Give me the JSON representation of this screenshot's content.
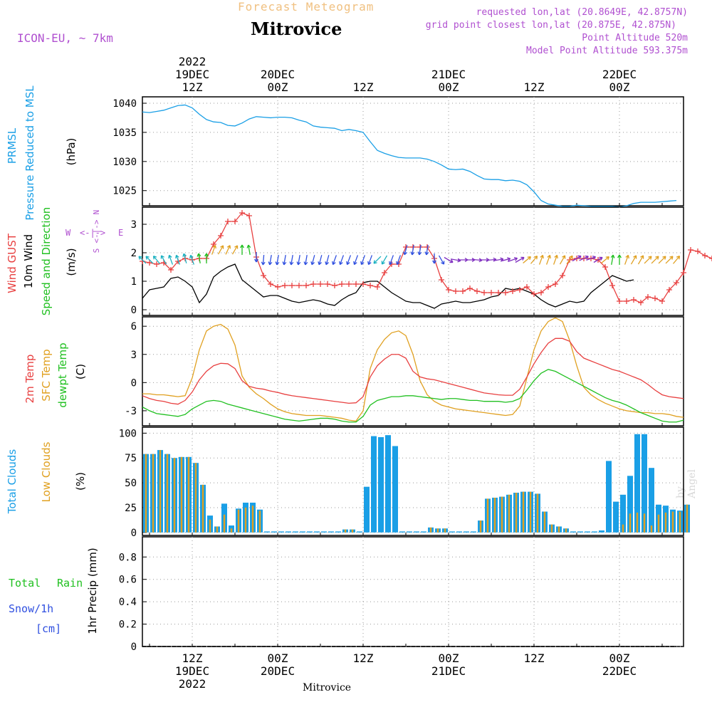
{
  "header": {
    "title_top": "Forecast Meteogram",
    "location": "Mitrovice",
    "model": "ICON-EU, ~ 7km",
    "requested": "requested lon,lat (20.8649E, 42.8757N)",
    "grid": "grid point closest lon,lat (20.875E, 42.875N)",
    "point_alt": "Point Altitude 520m",
    "model_alt": "Model Point Altitude 593.375m",
    "footer": "Mitrovice",
    "watermark": "by Angel"
  },
  "colors": {
    "pressure": "#1a9fe6",
    "gust": "#e84040",
    "wind": "#000000",
    "temp2m": "#e84040",
    "sfc": "#e0a020",
    "dewpt": "#20c020",
    "total_clouds": "#1a9fe6",
    "low_clouds": "#e0a020",
    "title_orange": "#f0c080",
    "purple": "#b050d0",
    "green_label": "#20c020",
    "blue_label": "#3050e0"
  },
  "time_axis": {
    "top": [
      {
        "t": 7,
        "lines": [
          "2022",
          "19DEC",
          "12Z"
        ]
      },
      {
        "t": 19,
        "lines": [
          "20DEC",
          "00Z"
        ]
      },
      {
        "t": 31,
        "lines": [
          "12Z"
        ]
      },
      {
        "t": 43,
        "lines": [
          "21DEC",
          "00Z"
        ]
      },
      {
        "t": 55,
        "lines": [
          "12Z"
        ]
      },
      {
        "t": 67,
        "lines": [
          "22DEC",
          "00Z"
        ]
      }
    ],
    "bottom": [
      {
        "t": 7,
        "lines": [
          "12Z",
          "19DEC",
          "2022"
        ]
      },
      {
        "t": 19,
        "lines": [
          "00Z",
          "20DEC"
        ]
      },
      {
        "t": 31,
        "lines": [
          "12Z"
        ]
      },
      {
        "t": 43,
        "lines": [
          "00Z",
          "21DEC"
        ]
      },
      {
        "t": 55,
        "lines": [
          "12Z"
        ]
      },
      {
        "t": 67,
        "lines": [
          "00Z",
          "22DEC"
        ]
      }
    ]
  },
  "panels": {
    "pressure": {
      "labels": [
        {
          "text": "PRMSL",
          "color": "#1a9fe6"
        },
        {
          "text": "Pressure Reduced to MSL",
          "color": "#1a9fe6"
        },
        {
          "text": "(hPa)",
          "color": "#000000"
        }
      ],
      "ticks": [
        "1040",
        "1035",
        "1030",
        "1025"
      ]
    },
    "wind": {
      "labels": [
        {
          "text": "Wind GUST",
          "color": "#e84040"
        },
        {
          "text": "10m Wind",
          "color": "#000000"
        },
        {
          "text": "Speed and Direction",
          "color": "#20c020"
        },
        {
          "text": "(m/s)",
          "color": "#000000"
        }
      ],
      "compass": {
        "n": "N",
        "s": "S",
        "e": "E",
        "w": "W"
      },
      "ticks": [
        "3",
        "2",
        "1",
        "0"
      ]
    },
    "temp": {
      "labels": [
        {
          "text": "2m Temp",
          "color": "#e84040"
        },
        {
          "text": "SFC Temp",
          "color": "#e0a020"
        },
        {
          "text": "dewpt Temp",
          "color": "#20c020"
        },
        {
          "text": "(C)",
          "color": "#000000"
        }
      ],
      "ticks": [
        "6",
        "3",
        "0",
        "-3"
      ]
    },
    "clouds": {
      "labels": [
        {
          "text": "Total Clouds",
          "color": "#1a9fe6"
        },
        {
          "text": "Low Clouds",
          "color": "#e0a020"
        },
        {
          "text": "(%)",
          "color": "#000000"
        }
      ],
      "ticks": [
        "100",
        "75",
        "50",
        "25",
        "0"
      ]
    },
    "precip": {
      "labels": [
        {
          "text": "1hr Precip (mm)",
          "color": "#000000"
        }
      ],
      "side": [
        {
          "text": "Total",
          "color": "#20c020"
        },
        {
          "text": "Rain",
          "color": "#20c020"
        },
        {
          "text": "Snow/1h",
          "color": "#3050e0"
        },
        {
          "text": "[cm]",
          "color": "#3050e0"
        }
      ],
      "ticks": [
        "0.8",
        "0.6",
        "0.4",
        "0.2",
        "0"
      ]
    }
  },
  "chart_data": {
    "type": "line",
    "x_unit": "hour steps from 19DEC 05Z (step = 1 hour)",
    "x_range": [
      0,
      76
    ],
    "pressure": {
      "name": "PRMSL",
      "ylim": [
        1022.4,
        1041.1
      ],
      "values": [
        1038.5,
        1038.4,
        1038.6,
        1038.8,
        1039.2,
        1039.6,
        1039.7,
        1039.2,
        1038.1,
        1037.2,
        1036.8,
        1036.7,
        1036.2,
        1036.1,
        1036.6,
        1037.3,
        1037.7,
        1037.6,
        1037.5,
        1037.6,
        1037.6,
        1037.5,
        1037.1,
        1036.8,
        1036.1,
        1035.9,
        1035.8,
        1035.7,
        1035.3,
        1035.5,
        1035.3,
        1035.0,
        1033.4,
        1031.9,
        1031.4,
        1031.0,
        1030.7,
        1030.6,
        1030.6,
        1030.6,
        1030.4,
        1030.0,
        1029.4,
        1028.7,
        1028.6,
        1028.7,
        1028.3,
        1027.6,
        1027.0,
        1026.9,
        1026.9,
        1026.7,
        1026.8,
        1026.6,
        1026.0,
        1024.8,
        1023.3,
        1022.7,
        1022.5,
        1022.3,
        1022.3,
        1022.5,
        1022.4,
        1022.3,
        1022.3,
        1022.3,
        1022.3,
        1022.2,
        1022.4,
        1022.8,
        1023.0,
        1023.0,
        1023.0,
        1023.1,
        1023.2,
        1023.3
      ]
    },
    "wind_gust": {
      "name": "Wind GUST",
      "ylim": [
        -0.2,
        3.6
      ],
      "values": [
        1.7,
        1.65,
        1.6,
        1.65,
        1.4,
        1.7,
        1.8,
        1.75,
        1.8,
        1.8,
        2.3,
        2.6,
        3.1,
        3.1,
        3.4,
        3.3,
        1.85,
        1.2,
        0.9,
        0.8,
        0.85,
        0.85,
        0.85,
        0.85,
        0.9,
        0.9,
        0.9,
        0.85,
        0.9,
        0.9,
        0.9,
        0.9,
        0.85,
        0.8,
        1.3,
        1.6,
        1.6,
        2.2,
        2.2,
        2.2,
        2.2,
        1.8,
        1.05,
        0.7,
        0.65,
        0.65,
        0.75,
        0.65,
        0.6,
        0.6,
        0.6,
        0.6,
        0.65,
        0.7,
        0.8,
        0.55,
        0.6,
        0.8,
        0.9,
        1.2,
        1.75,
        1.8,
        1.8,
        1.8,
        1.75,
        1.5,
        0.85,
        0.3,
        0.3,
        0.35,
        0.25,
        0.45,
        0.4,
        0.3,
        0.7,
        0.95,
        1.3,
        2.1,
        2.05,
        1.9,
        1.8
      ]
    },
    "wind_10m": {
      "name": "10m Wind",
      "ylim": [
        -0.2,
        3.6
      ],
      "values": [
        0.4,
        0.7,
        0.75,
        0.8,
        1.1,
        1.15,
        1.0,
        0.8,
        0.25,
        0.55,
        1.15,
        1.35,
        1.5,
        1.6,
        1.05,
        0.85,
        0.65,
        0.45,
        0.5,
        0.5,
        0.4,
        0.3,
        0.25,
        0.3,
        0.35,
        0.3,
        0.2,
        0.15,
        0.35,
        0.5,
        0.6,
        0.95,
        1.0,
        1.0,
        0.8,
        0.6,
        0.45,
        0.3,
        0.25,
        0.25,
        0.15,
        0.05,
        0.2,
        0.25,
        0.3,
        0.25,
        0.25,
        0.3,
        0.35,
        0.45,
        0.5,
        0.75,
        0.7,
        0.75,
        0.65,
        0.55,
        0.35,
        0.2,
        0.1,
        0.2,
        0.3,
        0.25,
        0.3,
        0.6,
        0.8,
        1.0,
        1.2,
        1.1,
        1.0,
        1.05
      ]
    },
    "temp_2m": {
      "name": "2m Temp",
      "ylim": [
        -4.6,
        7.0
      ],
      "values": [
        -1.4,
        -1.7,
        -1.9,
        -2.0,
        -2.2,
        -2.3,
        -1.9,
        -1.0,
        0.3,
        1.2,
        1.8,
        2.05,
        2.0,
        1.5,
        0.2,
        -0.4,
        -0.6,
        -0.7,
        -0.9,
        -1.05,
        -1.25,
        -1.4,
        -1.5,
        -1.6,
        -1.7,
        -1.8,
        -1.9,
        -2.0,
        -2.1,
        -2.2,
        -2.15,
        -1.5,
        0.6,
        1.8,
        2.5,
        3.0,
        3.0,
        2.6,
        1.2,
        0.6,
        0.4,
        0.3,
        0.1,
        -0.1,
        -0.3,
        -0.5,
        -0.7,
        -0.9,
        -1.1,
        -1.2,
        -1.3,
        -1.35,
        -1.35,
        -0.7,
        0.6,
        2.0,
        3.2,
        4.2,
        4.7,
        4.7,
        4.4,
        3.3,
        2.6,
        2.3,
        2.0,
        1.7,
        1.4,
        1.2,
        0.9,
        0.6,
        0.3,
        -0.2,
        -0.8,
        -1.3,
        -1.5,
        -1.6,
        -1.7
      ]
    },
    "temp_sfc": {
      "name": "SFC Temp",
      "ylim": [
        -4.6,
        7.0
      ],
      "values": [
        -1.2,
        -1.2,
        -1.3,
        -1.3,
        -1.4,
        -1.5,
        -1.4,
        0.5,
        3.5,
        5.5,
        6.0,
        6.2,
        5.7,
        4.0,
        0.7,
        -0.5,
        -1.2,
        -1.7,
        -2.3,
        -2.8,
        -3.1,
        -3.3,
        -3.4,
        -3.5,
        -3.5,
        -3.5,
        -3.6,
        -3.7,
        -3.8,
        -4.0,
        -4.1,
        -3.0,
        1.5,
        3.5,
        4.6,
        5.3,
        5.5,
        5.0,
        3.0,
        0.2,
        -1.3,
        -2.0,
        -2.4,
        -2.6,
        -2.8,
        -2.9,
        -3.0,
        -3.1,
        -3.2,
        -3.3,
        -3.4,
        -3.5,
        -3.4,
        -2.5,
        0.5,
        3.5,
        5.5,
        6.5,
        6.9,
        6.5,
        4.5,
        1.8,
        -0.5,
        -1.3,
        -1.8,
        -2.2,
        -2.5,
        -2.8,
        -3.0,
        -3.1,
        -3.2,
        -3.2,
        -3.3,
        -3.3,
        -3.4,
        -3.6,
        -3.7
      ]
    },
    "dewpt": {
      "name": "dewpt Temp",
      "ylim": [
        -4.6,
        7.0
      ],
      "values": [
        -2.6,
        -3.0,
        -3.3,
        -3.4,
        -3.5,
        -3.6,
        -3.4,
        -2.8,
        -2.4,
        -2.0,
        -1.9,
        -2.0,
        -2.3,
        -2.5,
        -2.7,
        -2.9,
        -3.1,
        -3.3,
        -3.5,
        -3.7,
        -3.9,
        -4.0,
        -4.1,
        -4.0,
        -3.9,
        -3.8,
        -3.8,
        -3.9,
        -4.1,
        -4.2,
        -4.2,
        -3.6,
        -2.4,
        -1.9,
        -1.7,
        -1.5,
        -1.5,
        -1.4,
        -1.4,
        -1.5,
        -1.6,
        -1.7,
        -1.8,
        -1.7,
        -1.7,
        -1.8,
        -1.9,
        -1.9,
        -2.0,
        -2.0,
        -2.0,
        -2.1,
        -2.0,
        -1.7,
        -0.8,
        0.2,
        1.0,
        1.4,
        1.2,
        0.8,
        0.4,
        0.0,
        -0.4,
        -0.8,
        -1.2,
        -1.6,
        -1.9,
        -2.1,
        -2.4,
        -2.8,
        -3.2,
        -3.5,
        -3.8,
        -4.1,
        -4.2,
        -4.2,
        -4.0
      ]
    },
    "total_clouds": {
      "name": "Total Clouds",
      "ylim": [
        -3,
        106
      ],
      "values": [
        79,
        79,
        83,
        79,
        75,
        76,
        76,
        70,
        48,
        17,
        6,
        29,
        7,
        24,
        30,
        30,
        23,
        1,
        1,
        1,
        1,
        1,
        1,
        1,
        1,
        1,
        1,
        1,
        3,
        3,
        1,
        46,
        97,
        96,
        98,
        87,
        1,
        1,
        1,
        1,
        5,
        4,
        4,
        1,
        1,
        1,
        1,
        12,
        34,
        35,
        36,
        38,
        40,
        41,
        41,
        39,
        21,
        8,
        6,
        4,
        1,
        1,
        1,
        1,
        2,
        72,
        31,
        38,
        57,
        99,
        99,
        65,
        28,
        27,
        23,
        22,
        28
      ]
    },
    "low_clouds": {
      "name": "Low Clouds",
      "ylim": [
        -3,
        106
      ],
      "values": [
        79,
        79,
        83,
        79,
        75,
        76,
        76,
        70,
        48,
        13,
        6,
        18,
        4,
        23,
        25,
        27,
        22,
        1,
        1,
        1,
        1,
        1,
        1,
        1,
        1,
        1,
        1,
        1,
        3,
        3,
        1,
        1,
        1,
        1,
        1,
        1,
        1,
        1,
        1,
        1,
        5,
        4,
        4,
        1,
        1,
        1,
        1,
        12,
        34,
        35,
        36,
        38,
        40,
        41,
        41,
        39,
        21,
        8,
        6,
        4,
        1,
        1,
        1,
        1,
        1,
        1,
        1,
        8,
        19,
        20,
        19,
        7,
        18,
        20,
        21,
        21,
        28
      ]
    },
    "precip": {
      "name": "1hr Precip",
      "ylim": [
        0,
        0.98
      ],
      "values": [
        0,
        0,
        0,
        0,
        0,
        0,
        0,
        0,
        0,
        0,
        0,
        0,
        0,
        0,
        0,
        0,
        0,
        0,
        0,
        0,
        0,
        0,
        0,
        0,
        0,
        0,
        0,
        0,
        0,
        0,
        0,
        0,
        0,
        0,
        0,
        0,
        0,
        0,
        0,
        0,
        0,
        0,
        0,
        0,
        0,
        0,
        0,
        0,
        0,
        0,
        0,
        0,
        0,
        0,
        0,
        0,
        0,
        0,
        0,
        0,
        0,
        0,
        0,
        0,
        0,
        0,
        0,
        0,
        0,
        0,
        0,
        0,
        0,
        0,
        0,
        0
      ]
    },
    "wind_dir_deg": [
      135,
      135,
      140,
      150,
      160,
      160,
      165,
      160,
      170,
      180,
      200,
      210,
      205,
      210,
      180,
      170,
      0,
      5,
      10,
      10,
      10,
      10,
      10,
      10,
      15,
      15,
      15,
      20,
      20,
      20,
      20,
      20,
      20,
      45,
      30,
      20,
      20,
      15,
      10,
      10,
      10,
      0,
      330,
      300,
      280,
      270,
      270,
      275,
      270,
      265,
      260,
      255,
      250,
      240,
      230,
      220,
      200,
      200,
      200,
      210,
      215,
      240,
      245,
      250,
      240,
      230,
      190,
      180,
      200,
      210,
      210,
      225,
      225,
      225,
      225,
      220
    ]
  }
}
